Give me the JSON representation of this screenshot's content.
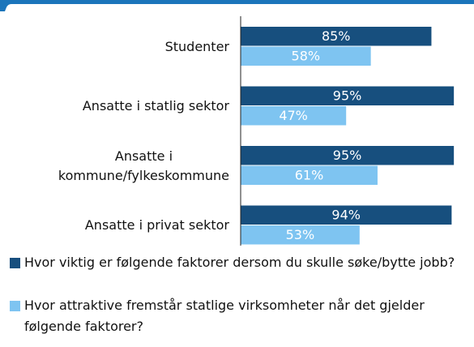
{
  "chart_data": {
    "type": "bar",
    "orientation": "horizontal",
    "categories": [
      "Studenter",
      "Ansatte i statlig sektor",
      "Ansatte i\nkommune/fylkeskommune",
      "Ansatte i privat sektor"
    ],
    "series": [
      {
        "name": "Hvor viktig er følgende faktorer dersom du skulle søke/bytte jobb?",
        "color": "#174f7e",
        "values": [
          85,
          95,
          95,
          94
        ],
        "value_labels": [
          "85%",
          "95%",
          "95%",
          "94%"
        ]
      },
      {
        "name": "Hvor attraktive fremstår statlige virksomheter når det gjelder følgende faktorer?",
        "color": "#7ec4f1",
        "values": [
          58,
          47,
          61,
          53
        ],
        "value_labels": [
          "58%",
          "47%",
          "61%",
          "53%"
        ]
      }
    ],
    "xlim": [
      0,
      100
    ]
  }
}
